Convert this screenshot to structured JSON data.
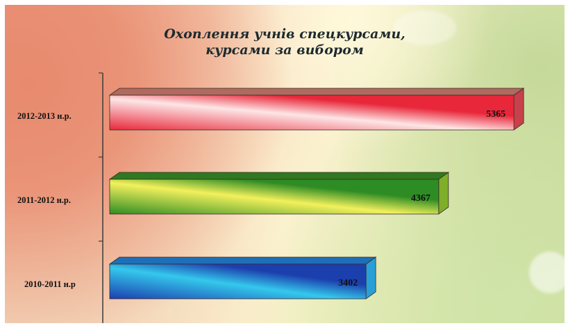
{
  "chart_data": {
    "type": "bar",
    "orientation": "horizontal",
    "title_lines": [
      "Охоплення учнів спецкурсами,",
      "курсами за вибором"
    ],
    "categories": [
      "2012-2013 н.р.",
      "2011-2012 н.р.",
      "2010-2011 н.р"
    ],
    "values": [
      5365,
      4367,
      3402
    ],
    "bar_colors": [
      {
        "main": "#e8283a",
        "light": "#fde6e6",
        "top": "#b06a5e",
        "side": "#c8404a"
      },
      {
        "main": "#2e8c24",
        "light": "#f3f05c",
        "top": "#2f7a1e",
        "side": "#7fae28"
      },
      {
        "main": "#1c3fae",
        "light": "#34c8ec",
        "top": "#1f6fb8",
        "side": "#2a9fd6"
      }
    ],
    "xlim": [
      0,
      5700
    ],
    "grid": false,
    "legend": "none"
  }
}
